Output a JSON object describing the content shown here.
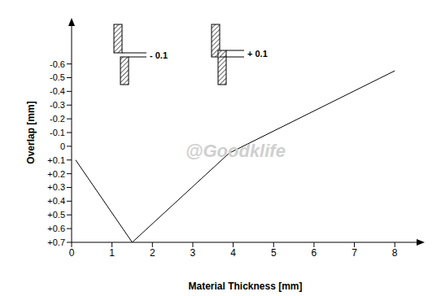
{
  "chart_data": {
    "type": "line",
    "x_label": "Material Thickness [mm]",
    "y_label": "Overlap [mm]",
    "x": [
      0.1,
      1.5,
      3.9,
      8
    ],
    "values": [
      0.1,
      0.7,
      0.05,
      -0.55
    ],
    "color": "#000000",
    "xlim": [
      0,
      8.6
    ],
    "xticks": [
      0,
      1,
      2,
      3,
      4,
      5,
      6,
      7,
      8
    ],
    "ylim": [
      -0.9,
      0.7
    ],
    "yticks": [
      -0.6,
      -0.5,
      -0.4,
      -0.3,
      -0.2,
      -0.1,
      0,
      {
        "value": 0.1,
        "label": "+0.1"
      },
      {
        "value": 0.2,
        "label": "+0.2"
      },
      {
        "value": 0.3,
        "label": "+0.3"
      },
      {
        "value": 0.4,
        "label": "+0.4"
      },
      {
        "value": 0.5,
        "label": "+0.5"
      },
      {
        "value": 0.6,
        "label": "+0.6"
      },
      {
        "value": 0.7,
        "label": "+0.7"
      }
    ],
    "annotations": [
      "- 0.1",
      "+ 0.1"
    ],
    "watermark": "@Goodklife",
    "grid": false
  }
}
